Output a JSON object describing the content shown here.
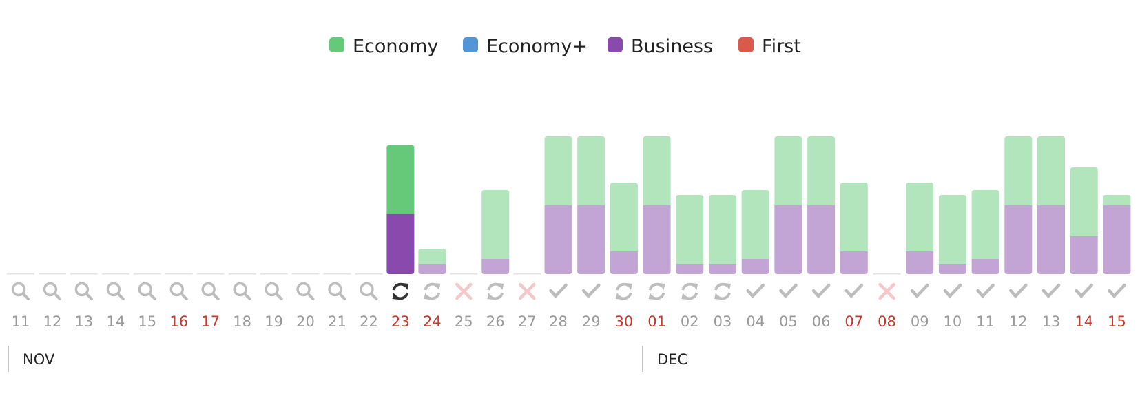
{
  "chart_data": {
    "type": "bar",
    "stacked": true,
    "legend": {
      "placement": "top-center",
      "items": [
        {
          "name": "Economy",
          "color": "#66c97a"
        },
        {
          "name": "Economy+",
          "color": "#5395d6"
        },
        {
          "name": "Business",
          "color": "#8a4aad"
        },
        {
          "name": "First",
          "color": "#d95a48"
        }
      ]
    },
    "months": [
      {
        "label": "NOV",
        "start_index": 0
      },
      {
        "label": "DEC",
        "start_index": 20
      }
    ],
    "y_max": 2,
    "days": [
      {
        "label": "11",
        "weekend": false,
        "status": "search",
        "business": 0,
        "economy": 0,
        "selected": false
      },
      {
        "label": "12",
        "weekend": false,
        "status": "search",
        "business": 0,
        "economy": 0,
        "selected": false
      },
      {
        "label": "13",
        "weekend": false,
        "status": "search",
        "business": 0,
        "economy": 0,
        "selected": false
      },
      {
        "label": "14",
        "weekend": false,
        "status": "search",
        "business": 0,
        "economy": 0,
        "selected": false
      },
      {
        "label": "15",
        "weekend": false,
        "status": "search",
        "business": 0,
        "economy": 0,
        "selected": false
      },
      {
        "label": "16",
        "weekend": true,
        "status": "search",
        "business": 0,
        "economy": 0,
        "selected": false
      },
      {
        "label": "17",
        "weekend": true,
        "status": "search",
        "business": 0,
        "economy": 0,
        "selected": false
      },
      {
        "label": "18",
        "weekend": false,
        "status": "search",
        "business": 0,
        "economy": 0,
        "selected": false
      },
      {
        "label": "19",
        "weekend": false,
        "status": "search",
        "business": 0,
        "economy": 0,
        "selected": false
      },
      {
        "label": "20",
        "weekend": false,
        "status": "search",
        "business": 0,
        "economy": 0,
        "selected": false
      },
      {
        "label": "21",
        "weekend": false,
        "status": "search",
        "business": 0,
        "economy": 0,
        "selected": false
      },
      {
        "label": "22",
        "weekend": false,
        "status": "search",
        "business": 0,
        "economy": 0,
        "selected": false
      },
      {
        "label": "23",
        "weekend": true,
        "status": "refresh",
        "business": 0.875,
        "economy": 1.0,
        "selected": true
      },
      {
        "label": "24",
        "weekend": true,
        "status": "refresh",
        "business": 0.15,
        "economy": 0.22,
        "selected": false
      },
      {
        "label": "25",
        "weekend": false,
        "status": "none",
        "business": 0,
        "economy": 0,
        "selected": false
      },
      {
        "label": "26",
        "weekend": false,
        "status": "refresh",
        "business": 0.22,
        "economy": 1.0,
        "selected": false
      },
      {
        "label": "27",
        "weekend": false,
        "status": "none",
        "business": 0,
        "economy": 0,
        "selected": false
      },
      {
        "label": "28",
        "weekend": false,
        "status": "check",
        "business": 1.0,
        "economy": 1.0,
        "selected": false
      },
      {
        "label": "29",
        "weekend": false,
        "status": "check",
        "business": 1.0,
        "economy": 1.0,
        "selected": false
      },
      {
        "label": "30",
        "weekend": true,
        "status": "refresh",
        "business": 0.33,
        "economy": 1.0,
        "selected": false
      },
      {
        "label": "01",
        "weekend": true,
        "status": "refresh",
        "business": 1.0,
        "economy": 1.0,
        "selected": false
      },
      {
        "label": "02",
        "weekend": false,
        "status": "refresh",
        "business": 0.15,
        "economy": 1.0,
        "selected": false
      },
      {
        "label": "03",
        "weekend": false,
        "status": "refresh",
        "business": 0.15,
        "economy": 1.0,
        "selected": false
      },
      {
        "label": "04",
        "weekend": false,
        "status": "check",
        "business": 0.22,
        "economy": 1.0,
        "selected": false
      },
      {
        "label": "05",
        "weekend": false,
        "status": "check",
        "business": 1.0,
        "economy": 1.0,
        "selected": false
      },
      {
        "label": "06",
        "weekend": false,
        "status": "check",
        "business": 1.0,
        "economy": 1.0,
        "selected": false
      },
      {
        "label": "07",
        "weekend": true,
        "status": "check",
        "business": 0.33,
        "economy": 1.0,
        "selected": false
      },
      {
        "label": "08",
        "weekend": true,
        "status": "none",
        "business": 0,
        "economy": 0,
        "selected": false
      },
      {
        "label": "09",
        "weekend": false,
        "status": "check",
        "business": 0.33,
        "economy": 1.0,
        "selected": false
      },
      {
        "label": "10",
        "weekend": false,
        "status": "check",
        "business": 0.15,
        "economy": 1.0,
        "selected": false
      },
      {
        "label": "11",
        "weekend": false,
        "status": "check",
        "business": 0.22,
        "economy": 1.0,
        "selected": false
      },
      {
        "label": "12",
        "weekend": false,
        "status": "check",
        "business": 1.0,
        "economy": 1.0,
        "selected": false
      },
      {
        "label": "13",
        "weekend": false,
        "status": "check",
        "business": 1.0,
        "economy": 1.0,
        "selected": false
      },
      {
        "label": "14",
        "weekend": true,
        "status": "check",
        "business": 0.55,
        "economy": 1.0,
        "selected": false
      },
      {
        "label": "15",
        "weekend": true,
        "status": "check",
        "business": 1.0,
        "economy": 0.15,
        "selected": false
      }
    ]
  }
}
